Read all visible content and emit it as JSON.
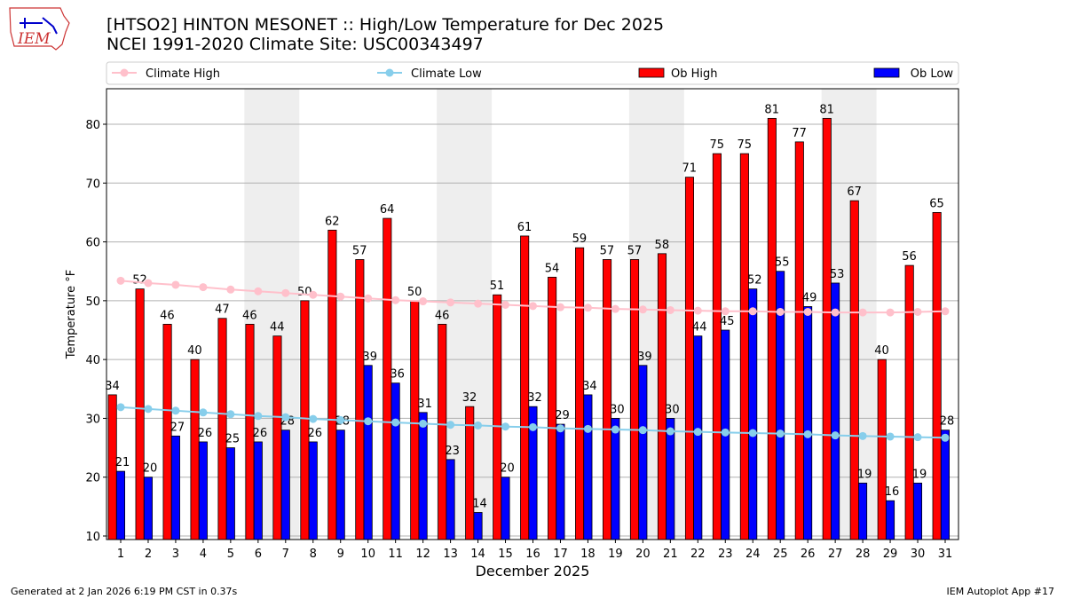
{
  "header": {
    "title_line1": "[HTSO2] HINTON MESONET :: High/Low Temperature for Dec 2025",
    "title_line2": "NCEI 1991-2020 Climate Site: USC00343497",
    "logo_text": "IEM"
  },
  "footer": {
    "left": "Generated at 2 Jan 2026 6:19 PM CST in 0.37s",
    "right": "IEM Autoplot App #17"
  },
  "chart_data": {
    "type": "bar",
    "xlabel": "December 2025",
    "ylabel": "Temperature °F",
    "ylim": [
      9.4,
      86
    ],
    "yticks": [
      10,
      20,
      30,
      40,
      50,
      60,
      70,
      80
    ],
    "grid": "horizontal",
    "legend_position": "top",
    "categories": [
      1,
      2,
      3,
      4,
      5,
      6,
      7,
      8,
      9,
      10,
      11,
      12,
      13,
      14,
      15,
      16,
      17,
      18,
      19,
      20,
      21,
      22,
      23,
      24,
      25,
      26,
      27,
      28,
      29,
      30,
      31
    ],
    "weekend_shaded_days": [
      [
        6,
        7
      ],
      [
        13,
        14
      ],
      [
        20,
        21
      ],
      [
        27,
        28
      ]
    ],
    "colors": {
      "ob_high": "#ff0000",
      "ob_low": "#0000ff",
      "climate_high": "#ffc0cb",
      "climate_low": "#87ceeb",
      "shade": "#eeeeee"
    },
    "series": [
      {
        "name": "Climate High",
        "type": "line",
        "values": [
          53.4,
          53.0,
          52.7,
          52.3,
          51.9,
          51.6,
          51.3,
          51.0,
          50.7,
          50.4,
          50.1,
          49.9,
          49.7,
          49.5,
          49.3,
          49.1,
          48.9,
          48.8,
          48.6,
          48.5,
          48.4,
          48.3,
          48.2,
          48.2,
          48.1,
          48.1,
          48.0,
          48.0,
          48.0,
          48.1,
          48.2
        ]
      },
      {
        "name": "Climate Low",
        "type": "line",
        "values": [
          31.9,
          31.6,
          31.3,
          31.0,
          30.7,
          30.4,
          30.2,
          29.9,
          29.7,
          29.5,
          29.3,
          29.1,
          28.9,
          28.8,
          28.6,
          28.5,
          28.3,
          28.2,
          28.1,
          28.0,
          27.8,
          27.7,
          27.6,
          27.5,
          27.4,
          27.3,
          27.1,
          27.0,
          26.9,
          26.8,
          26.7
        ]
      },
      {
        "name": "Ob High",
        "type": "bar",
        "values": [
          34,
          52,
          46,
          40,
          47,
          46,
          44,
          50,
          62,
          57,
          64,
          50,
          46,
          32,
          51,
          61,
          54,
          59,
          57,
          57,
          58,
          71,
          75,
          75,
          81,
          77,
          81,
          67,
          40,
          56,
          65
        ]
      },
      {
        "name": "Ob Low",
        "type": "bar",
        "values": [
          21,
          20,
          27,
          26,
          25,
          26,
          28,
          26,
          28,
          39,
          36,
          31,
          23,
          14,
          20,
          32,
          29,
          34,
          30,
          39,
          30,
          44,
          45,
          52,
          55,
          49,
          53,
          19,
          16,
          19,
          28
        ]
      }
    ]
  }
}
